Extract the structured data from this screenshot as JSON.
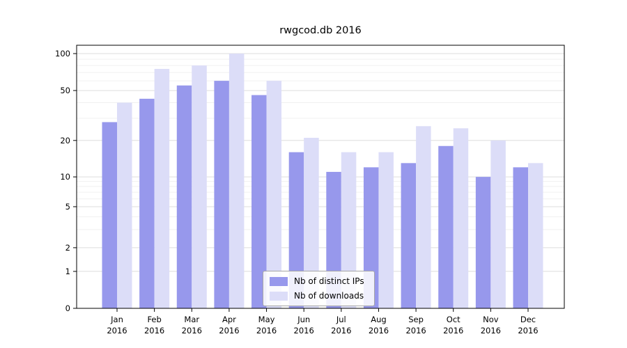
{
  "title": "rwgcod.db 2016",
  "colors": {
    "distinct_ips": "#9798ec",
    "downloads": "#dcddf8",
    "plot_border": "#000000",
    "grid_major": "#dddddd",
    "grid_minor": "#f0f0f0",
    "background": "#ffffff"
  },
  "chart_data": {
    "type": "bar",
    "scale": "symlog",
    "title": "rwgcod.db 2016",
    "categories": [
      "Jan",
      "Feb",
      "Mar",
      "Apr",
      "May",
      "Jun",
      "Jul",
      "Aug",
      "Sep",
      "Oct",
      "Nov",
      "Dec"
    ],
    "year": "2016",
    "series": [
      {
        "name": "Nb of distinct IPs",
        "color": "#9798ec",
        "values": [
          28,
          43,
          55,
          60,
          46,
          16,
          11,
          12,
          13,
          18,
          10,
          12
        ]
      },
      {
        "name": "Nb of downloads",
        "color": "#dcddf8",
        "values": [
          40,
          75,
          80,
          100,
          60,
          21,
          16,
          16,
          26,
          25,
          20,
          13
        ]
      }
    ],
    "yticks": [
      0,
      1,
      2,
      5,
      10,
      20,
      50,
      100
    ],
    "minor_yticks": [
      3,
      4,
      6,
      7,
      8,
      9,
      30,
      40,
      60,
      70,
      80,
      90
    ],
    "ylim": [
      0,
      100
    ],
    "grid": true,
    "legend_position": "lower center"
  }
}
